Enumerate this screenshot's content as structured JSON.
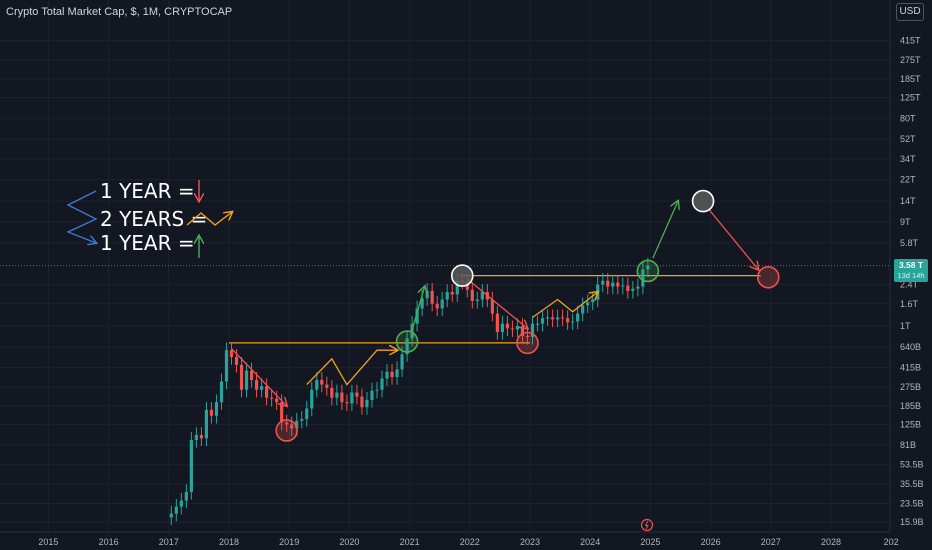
{
  "header": {
    "title": "Crypto Total Market Cap, $, 1M, CRYPTOCAP",
    "currency_button": "USD"
  },
  "colors": {
    "up": "#26a69a",
    "down": "#ef5350",
    "orange": "#f7a21b",
    "green_arrow": "#4caf50",
    "blue": "#3d7bd4",
    "white_circle": "#ffffff"
  },
  "legend": {
    "line1": "1 YEAR =",
    "line2": "2 YEARS =",
    "line3": "1 YEAR ="
  },
  "price_label": {
    "value": "3.58 T",
    "countdown": "13d 14h"
  },
  "chart_data": {
    "type": "candlestick",
    "title": "Crypto Total Market Cap, $, 1M, CRYPTOCAP",
    "y_scale": "log",
    "y_ticks": [
      "15.9B",
      "23.5B",
      "35.5B",
      "53.5B",
      "81B",
      "125B",
      "185B",
      "275B",
      "415B",
      "640B",
      "1T",
      "1.6T",
      "2.4T",
      "3.58 T",
      "5.8T",
      "9T",
      "14T",
      "22T",
      "34T",
      "52T",
      "80T",
      "125T",
      "185T",
      "275T",
      "415T"
    ],
    "x_ticks": [
      "2015",
      "2016",
      "2017",
      "2018",
      "2019",
      "2020",
      "2021",
      "2022",
      "2023",
      "2024",
      "2025",
      "2026",
      "2027",
      "2028",
      "202"
    ],
    "series": [
      {
        "name": "Crypto Total Market Cap",
        "approx_monthly_close_billions": [
          {
            "date": "2017-01",
            "o": 17.5,
            "c": 19
          },
          {
            "date": "2017-02",
            "o": 19,
            "c": 22
          },
          {
            "date": "2017-03",
            "o": 22,
            "c": 25
          },
          {
            "date": "2017-04",
            "o": 25,
            "c": 30
          },
          {
            "date": "2017-05",
            "o": 30,
            "c": 90
          },
          {
            "date": "2017-06",
            "o": 90,
            "c": 100
          },
          {
            "date": "2017-07",
            "o": 100,
            "c": 93
          },
          {
            "date": "2017-08",
            "o": 93,
            "c": 170
          },
          {
            "date": "2017-09",
            "o": 170,
            "c": 150
          },
          {
            "date": "2017-10",
            "o": 150,
            "c": 200
          },
          {
            "date": "2017-11",
            "o": 200,
            "c": 310
          },
          {
            "date": "2017-12",
            "o": 310,
            "c": 600
          },
          {
            "date": "2018-01",
            "o": 600,
            "c": 520
          },
          {
            "date": "2018-02",
            "o": 520,
            "c": 440
          },
          {
            "date": "2018-03",
            "o": 440,
            "c": 260
          },
          {
            "date": "2018-04",
            "o": 260,
            "c": 390
          },
          {
            "date": "2018-05",
            "o": 390,
            "c": 320
          },
          {
            "date": "2018-06",
            "o": 320,
            "c": 260
          },
          {
            "date": "2018-07",
            "o": 260,
            "c": 280
          },
          {
            "date": "2018-08",
            "o": 280,
            "c": 220
          },
          {
            "date": "2018-09",
            "o": 220,
            "c": 215
          },
          {
            "date": "2018-10",
            "o": 215,
            "c": 200
          },
          {
            "date": "2018-11",
            "o": 200,
            "c": 130
          },
          {
            "date": "2018-12",
            "o": 130,
            "c": 125
          },
          {
            "date": "2019-01",
            "o": 125,
            "c": 115
          },
          {
            "date": "2019-02",
            "o": 115,
            "c": 135
          },
          {
            "date": "2019-03",
            "o": 135,
            "c": 140
          },
          {
            "date": "2019-04",
            "o": 140,
            "c": 175
          },
          {
            "date": "2019-05",
            "o": 175,
            "c": 260
          },
          {
            "date": "2019-06",
            "o": 260,
            "c": 320
          },
          {
            "date": "2019-07",
            "o": 320,
            "c": 290
          },
          {
            "date": "2019-08",
            "o": 290,
            "c": 270
          },
          {
            "date": "2019-09",
            "o": 270,
            "c": 220
          },
          {
            "date": "2019-10",
            "o": 220,
            "c": 245
          },
          {
            "date": "2019-11",
            "o": 245,
            "c": 200
          },
          {
            "date": "2019-12",
            "o": 200,
            "c": 195
          },
          {
            "date": "2020-01",
            "o": 195,
            "c": 245
          },
          {
            "date": "2020-02",
            "o": 245,
            "c": 225
          },
          {
            "date": "2020-03",
            "o": 225,
            "c": 180
          },
          {
            "date": "2020-04",
            "o": 180,
            "c": 210
          },
          {
            "date": "2020-05",
            "o": 210,
            "c": 255
          },
          {
            "date": "2020-06",
            "o": 255,
            "c": 260
          },
          {
            "date": "2020-07",
            "o": 260,
            "c": 330
          },
          {
            "date": "2020-08",
            "o": 330,
            "c": 380
          },
          {
            "date": "2020-09",
            "o": 380,
            "c": 340
          },
          {
            "date": "2020-10",
            "o": 340,
            "c": 400
          },
          {
            "date": "2020-11",
            "o": 400,
            "c": 550
          },
          {
            "date": "2020-12",
            "o": 550,
            "c": 770
          },
          {
            "date": "2021-01",
            "o": 770,
            "c": 1050
          },
          {
            "date": "2021-02",
            "o": 1050,
            "c": 1450
          },
          {
            "date": "2021-03",
            "o": 1450,
            "c": 1800
          },
          {
            "date": "2021-04",
            "o": 1800,
            "c": 2100
          },
          {
            "date": "2021-05",
            "o": 2100,
            "c": 1600
          },
          {
            "date": "2021-06",
            "o": 1600,
            "c": 1450
          },
          {
            "date": "2021-07",
            "o": 1450,
            "c": 1750
          },
          {
            "date": "2021-08",
            "o": 1750,
            "c": 2050
          },
          {
            "date": "2021-09",
            "o": 2050,
            "c": 1950
          },
          {
            "date": "2021-10",
            "o": 1950,
            "c": 2600
          },
          {
            "date": "2021-11",
            "o": 2600,
            "c": 2550
          },
          {
            "date": "2021-12",
            "o": 2550,
            "c": 2150
          },
          {
            "date": "2022-01",
            "o": 2150,
            "c": 1700
          },
          {
            "date": "2022-02",
            "o": 1700,
            "c": 1750
          },
          {
            "date": "2022-03",
            "o": 1750,
            "c": 2050
          },
          {
            "date": "2022-04",
            "o": 2050,
            "c": 1750
          },
          {
            "date": "2022-05",
            "o": 1750,
            "c": 1300
          },
          {
            "date": "2022-06",
            "o": 1300,
            "c": 880
          },
          {
            "date": "2022-07",
            "o": 880,
            "c": 1050
          },
          {
            "date": "2022-08",
            "o": 1050,
            "c": 950
          },
          {
            "date": "2022-09",
            "o": 950,
            "c": 930
          },
          {
            "date": "2022-10",
            "o": 930,
            "c": 1000
          },
          {
            "date": "2022-11",
            "o": 1000,
            "c": 810
          },
          {
            "date": "2022-12",
            "o": 810,
            "c": 795
          },
          {
            "date": "2023-01",
            "o": 795,
            "c": 1050
          },
          {
            "date": "2023-02",
            "o": 1050,
            "c": 1050
          },
          {
            "date": "2023-03",
            "o": 1050,
            "c": 1180
          },
          {
            "date": "2023-04",
            "o": 1180,
            "c": 1200
          },
          {
            "date": "2023-05",
            "o": 1200,
            "c": 1150
          },
          {
            "date": "2023-06",
            "o": 1150,
            "c": 1200
          },
          {
            "date": "2023-07",
            "o": 1200,
            "c": 1180
          },
          {
            "date": "2023-08",
            "o": 1180,
            "c": 1080
          },
          {
            "date": "2023-09",
            "o": 1080,
            "c": 1100
          },
          {
            "date": "2023-10",
            "o": 1100,
            "c": 1300
          },
          {
            "date": "2023-11",
            "o": 1300,
            "c": 1550
          },
          {
            "date": "2023-12",
            "o": 1550,
            "c": 1650
          },
          {
            "date": "2024-01",
            "o": 1650,
            "c": 1750
          },
          {
            "date": "2024-02",
            "o": 1750,
            "c": 2400
          },
          {
            "date": "2024-03",
            "o": 2400,
            "c": 2600
          },
          {
            "date": "2024-04",
            "o": 2600,
            "c": 2300
          },
          {
            "date": "2024-05",
            "o": 2300,
            "c": 2500
          },
          {
            "date": "2024-06",
            "o": 2500,
            "c": 2300
          },
          {
            "date": "2024-07",
            "o": 2300,
            "c": 2350
          },
          {
            "date": "2024-08",
            "o": 2350,
            "c": 2100
          },
          {
            "date": "2024-09",
            "o": 2100,
            "c": 2200
          },
          {
            "date": "2024-10",
            "o": 2200,
            "c": 2300
          },
          {
            "date": "2024-11",
            "o": 2300,
            "c": 3300
          },
          {
            "date": "2024-12",
            "o": 3300,
            "c": 3580
          }
        ]
      }
    ],
    "annotations": {
      "horizontal_lines_orange": [
        {
          "from": "2018-01",
          "to": "2023-01",
          "value_billions": 700
        },
        {
          "from": "2021-11",
          "to": "2026-11",
          "value_billions": 2900
        }
      ],
      "horizontal_line_green": {
        "value_billions": 3580
      },
      "circles": [
        {
          "date": "2018-12",
          "value_billions": 110,
          "color": "red"
        },
        {
          "date": "2020-12",
          "value_billions": 720,
          "color": "green"
        },
        {
          "date": "2021-11",
          "value_billions": 2900,
          "color": "white"
        },
        {
          "date": "2022-12",
          "value_billions": 700,
          "color": "red"
        },
        {
          "date": "2024-12",
          "value_billions": 3200,
          "color": "green"
        },
        {
          "date": "2025-11",
          "value_billions": 14000,
          "color": "white"
        },
        {
          "date": "2026-12",
          "value_billions": 2800,
          "color": "red"
        }
      ]
    }
  }
}
